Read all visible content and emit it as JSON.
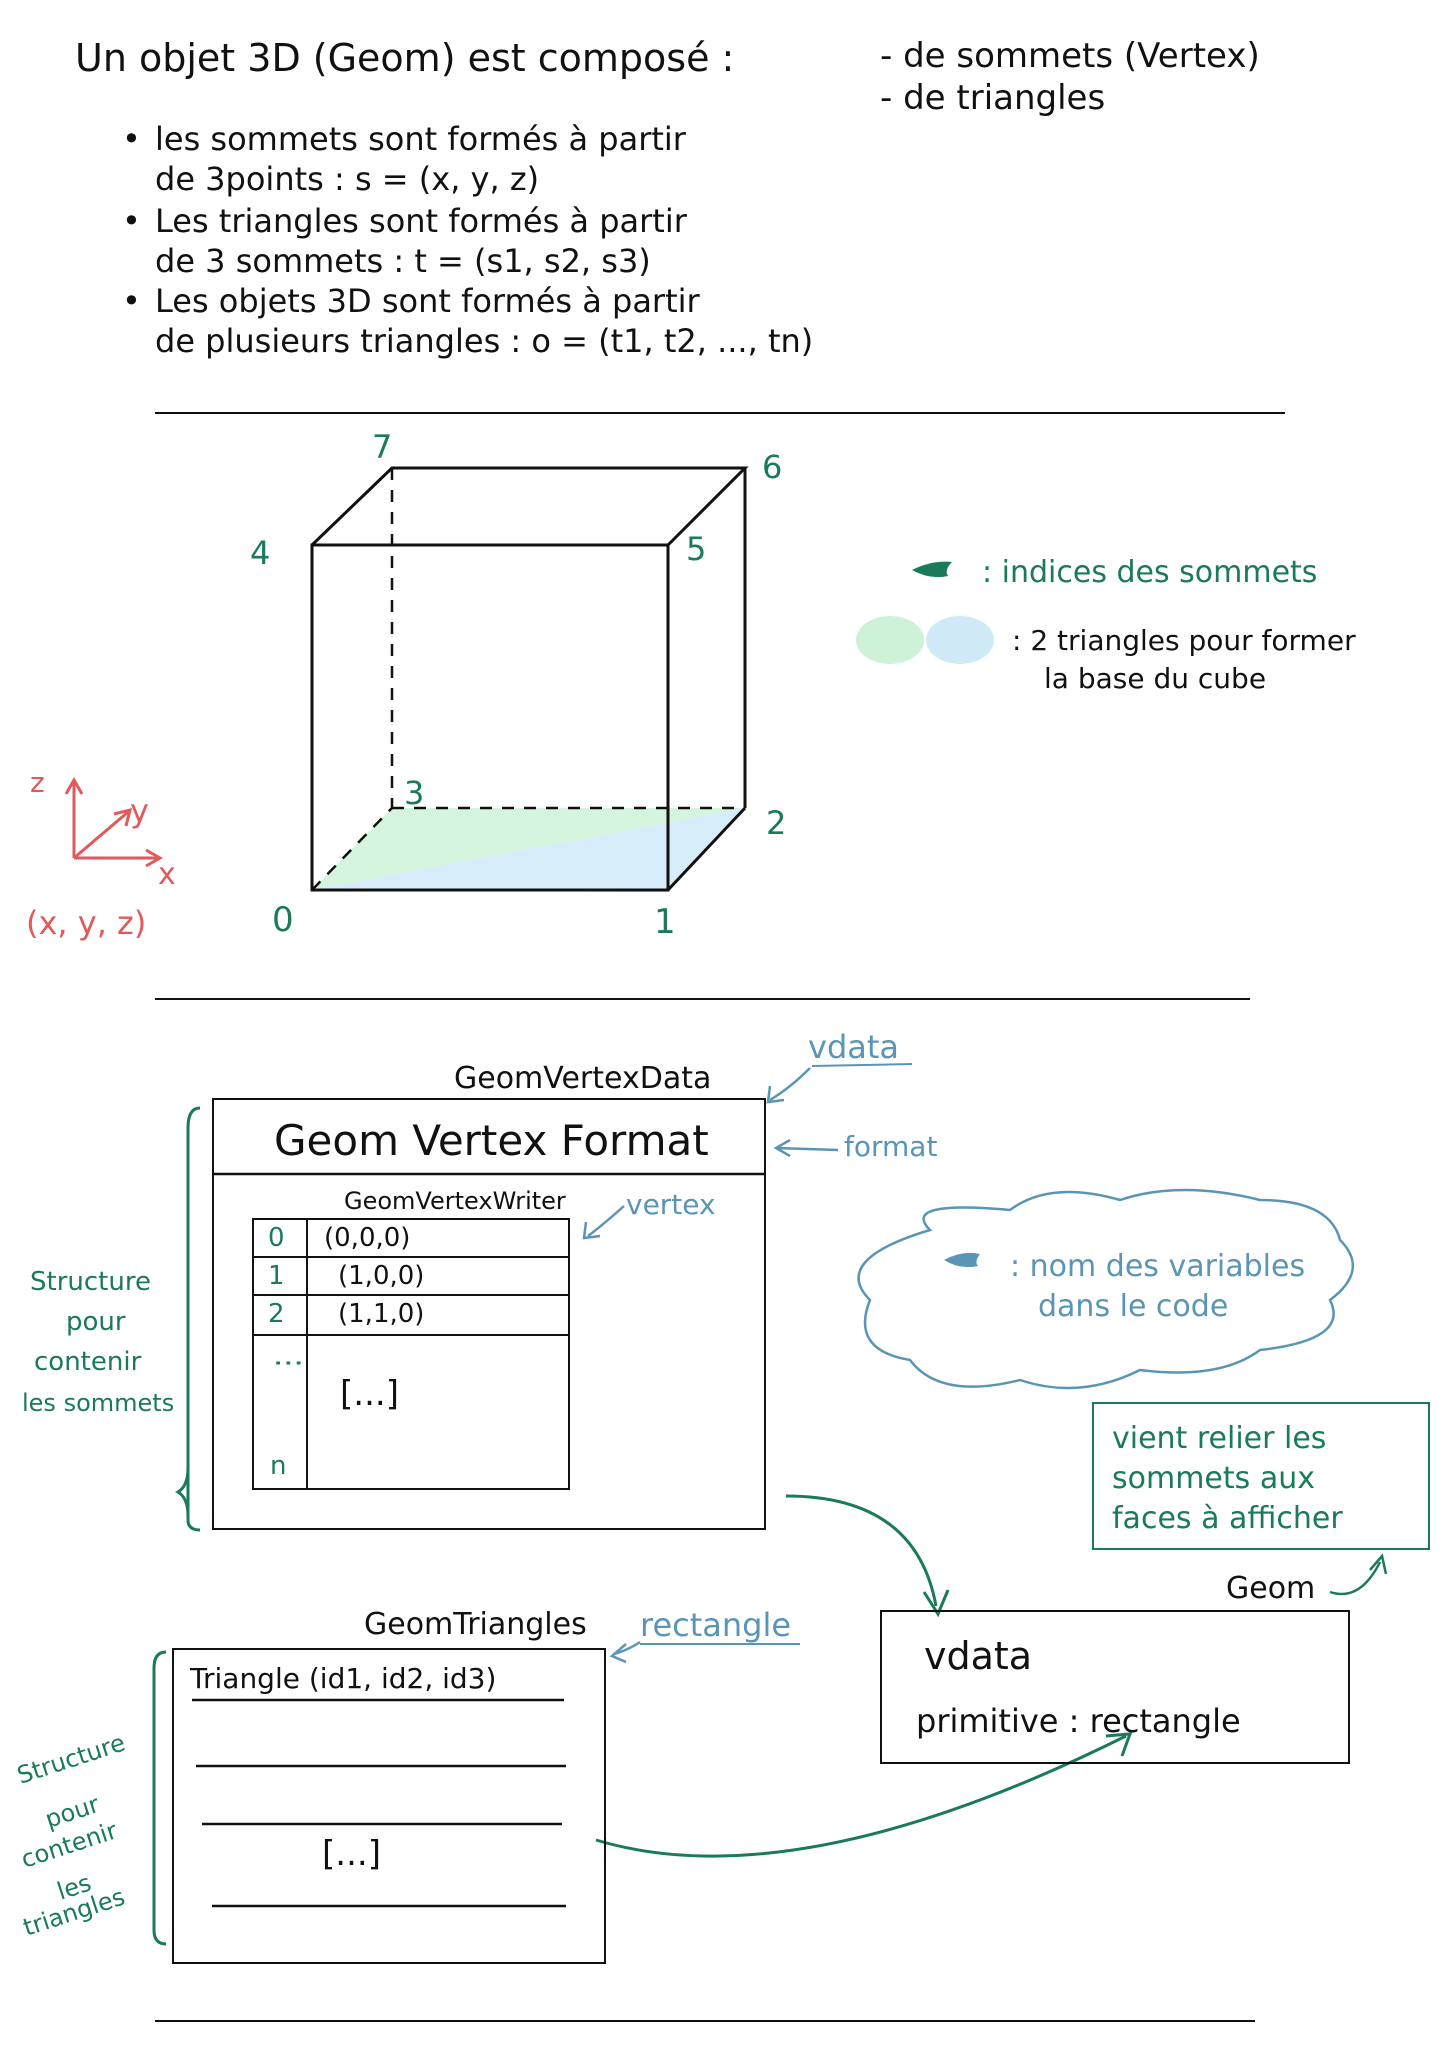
{
  "header": {
    "line1": "Un objet 3D (Geom) est composé :",
    "items_right": [
      "- de sommets (Vertex)",
      "- de triangles"
    ],
    "bullets": [
      {
        "l1": "les sommets sont formés à partir",
        "l2": "de 3points : s = (x, y, z)"
      },
      {
        "l1": "Les triangles sont formés à partir",
        "l2": "de 3 sommets : t = (s1, s2, s3)"
      },
      {
        "l1": "Les objets 3D sont formés à partir",
        "l2": "de plusieurs triangles : o = (t1, t2, ..., tn)"
      }
    ]
  },
  "cube": {
    "vertex_labels": [
      "0",
      "1",
      "2",
      "3",
      "4",
      "5",
      "6",
      "7"
    ],
    "axes": {
      "z": "z",
      "y": "y",
      "x": "x",
      "caption": "(x, y, z)"
    }
  },
  "legend": {
    "indices": ": indices des sommets",
    "triangles_l1": ": 2 triangles pour former",
    "triangles_l2": "la base du cube"
  },
  "vertex_structure": {
    "outer_label": "GeomVertexData",
    "format_label": "Geom Vertex Format",
    "writer_label": "GeomVertexWriter",
    "rows": [
      {
        "idx": "0",
        "val": "(0,0,0)"
      },
      {
        "idx": "1",
        "val": "(1,0,0)"
      },
      {
        "idx": "2",
        "val": "(1,1,0)"
      }
    ],
    "dots": ":",
    "ellipsis": "[...]",
    "last_idx": "n",
    "side_note": [
      "Structure",
      "pour",
      "contenir",
      "les sommets"
    ],
    "var_vdata": "vdata",
    "var_format": "format",
    "var_vertex": "vertex"
  },
  "cloud_note": {
    "l1": ": nom des variables",
    "l2": "dans le code"
  },
  "geom_note": {
    "l1": "vient relier les",
    "l2": "sommets aux",
    "l3": "faces à afficher",
    "label": "Geom"
  },
  "geom_box": {
    "vdata": "vdata",
    "primitive": "primitive : rectangle"
  },
  "triangle_structure": {
    "label": "GeomTriangles",
    "var_name": "rectangle",
    "header": "Triangle (id1, id2, id3)",
    "ellipsis": "[...]",
    "side_note": [
      "Structure",
      "pour",
      "contenir",
      "les",
      "triangles"
    ]
  },
  "colors": {
    "green": "#1a7a5a",
    "blue": "#5a95b5",
    "red": "#e05a5a",
    "light_green": "#cdf2d8",
    "light_blue": "#cfe9f7"
  }
}
